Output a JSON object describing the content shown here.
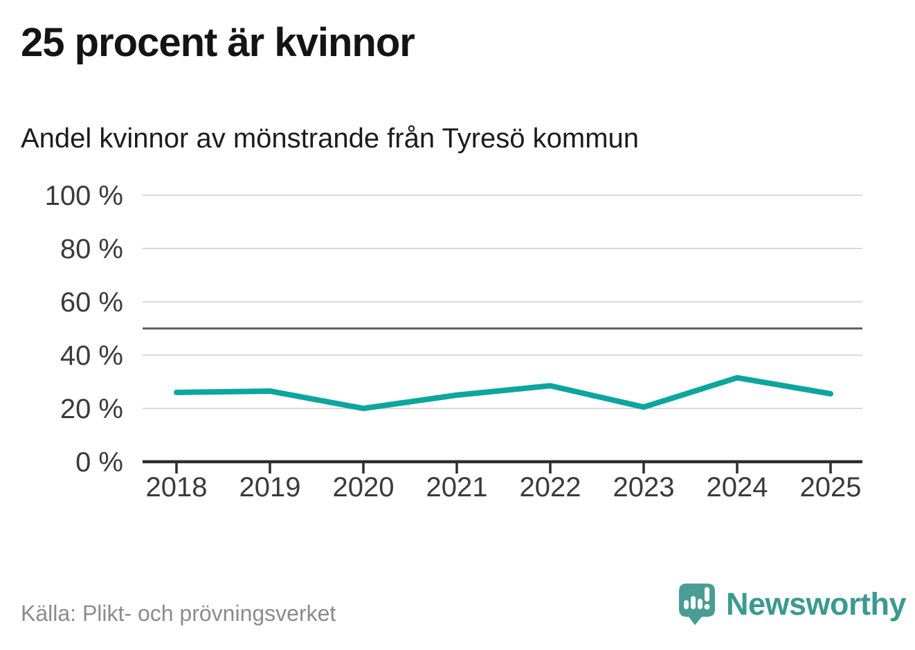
{
  "header": {
    "title": "25 procent är kvinnor",
    "subtitle": "Andel kvinnor av mönstrande från Tyresö kommun"
  },
  "chart_data": {
    "type": "line",
    "title": "25 procent är kvinnor",
    "subtitle": "Andel kvinnor av mönstrande från Tyresö kommun",
    "x": [
      2018,
      2019,
      2020,
      2021,
      2022,
      2023,
      2024,
      2025
    ],
    "series": [
      {
        "name": "Andel kvinnor av mönstrande",
        "values": [
          26,
          26.5,
          20,
          25,
          28.5,
          20.5,
          31.5,
          25.5
        ]
      }
    ],
    "unit": "%",
    "ylim": [
      0,
      100
    ],
    "y_ticks": [
      0,
      20,
      40,
      60,
      80,
      100
    ],
    "y_tick_suffix": " %",
    "reference_line": 50,
    "grid": true,
    "legend": "none",
    "colors": {
      "line": "#0da69e",
      "gridline": "#d9d9d9",
      "reference_line": "#636363",
      "axis": "#2e2e2e",
      "tick_label": "#3a3a3a"
    }
  },
  "footer": {
    "source": "Källa: Plikt- och prövningsverket",
    "brand": "Newsworthy",
    "brand_color": "#3a9a92",
    "logo_color": "#4a9d96",
    "logo_icon": "newsworthy-speech-bubble-bar-chart-icon"
  }
}
